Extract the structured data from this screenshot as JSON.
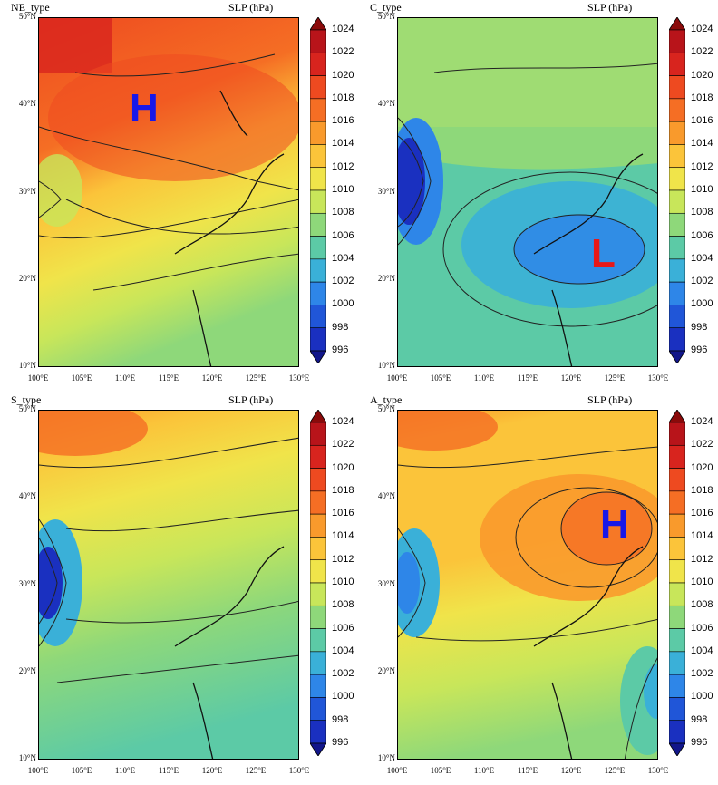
{
  "colorbar": {
    "levels": [
      "1024",
      "1022",
      "1020",
      "1018",
      "1016",
      "1014",
      "1012",
      "1010",
      "1008",
      "1006",
      "1004",
      "1002",
      "1000",
      "998",
      "996"
    ],
    "colors": [
      "#8a0a0a",
      "#b8141a",
      "#d8241e",
      "#ee4a20",
      "#f56e24",
      "#f99a2c",
      "#fbc43a",
      "#f0e44a",
      "#c8e65a",
      "#8ed87a",
      "#5ccaa6",
      "#3ab0d8",
      "#2e86e8",
      "#2056d8",
      "#1a30c0",
      "#12168a"
    ]
  },
  "axes": {
    "lat_labels": [
      "50°N",
      "40°N",
      "30°N",
      "20°N",
      "10°N"
    ],
    "lon_labels": [
      "100°E",
      "105°E",
      "110°E",
      "115°E",
      "120°E",
      "125°E",
      "130°E"
    ]
  },
  "panels": [
    {
      "title": "NE_type",
      "unit": "SLP (hPa)",
      "marker": "H",
      "marker_color": "#1818e8"
    },
    {
      "title": "C_type",
      "unit": "SLP (hPa)",
      "marker": "L",
      "marker_color": "#e81818"
    },
    {
      "title": "S_type",
      "unit": "SLP (hPa)",
      "marker": "",
      "marker_color": ""
    },
    {
      "title": "A_type",
      "unit": "SLP (hPa)",
      "marker": "H",
      "marker_color": "#1818e8"
    }
  ]
}
